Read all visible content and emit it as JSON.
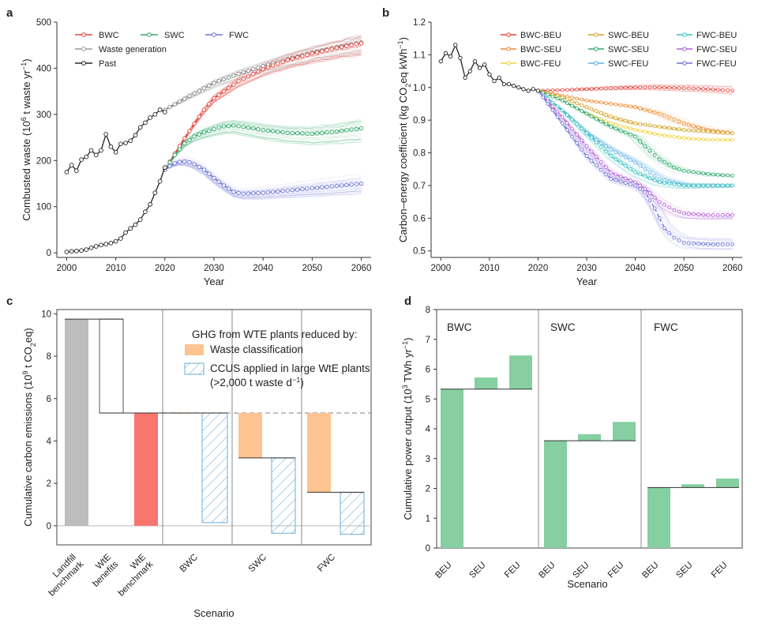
{
  "chart_data": [
    {
      "panel": "a",
      "type": "line",
      "xlabel": "Year",
      "ylabel": "Combusted waste (10^6 t waste yr^-1)",
      "xlim": [
        1998,
        2062
      ],
      "ylim": [
        -10,
        500
      ],
      "xticks": [
        2000,
        2010,
        2020,
        2030,
        2040,
        2050,
        2060
      ],
      "yticks": [
        0,
        100,
        200,
        300,
        400,
        500
      ],
      "legend": [
        "BWC",
        "SWC",
        "FWC",
        "Waste generation",
        "Past"
      ],
      "colors": {
        "BWC": "#e8423b",
        "SWC": "#2fa86b",
        "FWC": "#6f74d6",
        "Waste generation": "#9a9a9a",
        "Past": "#222222"
      },
      "series": [
        {
          "name": "Past",
          "x": [
            2000,
            2001,
            2002,
            2003,
            2004,
            2005,
            2006,
            2007,
            2008,
            2009,
            2010,
            2011,
            2012,
            2013,
            2014,
            2015,
            2016,
            2017,
            2018,
            2019,
            2020
          ],
          "values": [
            2,
            3,
            4,
            5,
            7,
            11,
            14,
            17,
            19,
            21,
            25,
            31,
            44,
            53,
            61,
            72,
            89,
            105,
            130,
            155,
            185
          ]
        },
        {
          "name": "Waste generation past",
          "x": [
            2000,
            2001,
            2002,
            2003,
            2004,
            2005,
            2006,
            2007,
            2008,
            2009,
            2010,
            2011,
            2012,
            2013,
            2014,
            2015,
            2016,
            2017,
            2018,
            2019,
            2020
          ],
          "values": [
            175,
            190,
            178,
            202,
            208,
            222,
            212,
            222,
            257,
            230,
            218,
            236,
            238,
            243,
            255,
            272,
            282,
            293,
            300,
            310,
            305
          ]
        },
        {
          "name": "Waste generation",
          "x": [
            2020,
            2025,
            2030,
            2035,
            2040,
            2045,
            2050,
            2055,
            2060
          ],
          "values": [
            310,
            340,
            368,
            388,
            405,
            420,
            434,
            446,
            456
          ]
        },
        {
          "name": "BWC",
          "x": [
            2020,
            2022,
            2024,
            2026,
            2028,
            2030,
            2035,
            2040,
            2045,
            2050,
            2055,
            2060
          ],
          "values": [
            180,
            215,
            248,
            280,
            310,
            335,
            372,
            398,
            418,
            432,
            444,
            454
          ]
        },
        {
          "name": "SWC",
          "x": [
            2020,
            2022,
            2024,
            2026,
            2028,
            2030,
            2032,
            2034,
            2036,
            2040,
            2045,
            2050,
            2055,
            2060
          ],
          "values": [
            180,
            212,
            237,
            252,
            261,
            268,
            274,
            276,
            273,
            266,
            260,
            258,
            263,
            270
          ]
        },
        {
          "name": "FWC",
          "x": [
            2020,
            2021,
            2022,
            2023,
            2024,
            2025,
            2026,
            2028,
            2030,
            2032,
            2034,
            2036,
            2040,
            2045,
            2050,
            2055,
            2060
          ],
          "values": [
            180,
            188,
            194,
            197,
            198,
            196,
            192,
            180,
            162,
            146,
            132,
            128,
            130,
            135,
            140,
            145,
            150
          ]
        }
      ]
    },
    {
      "panel": "b",
      "type": "line",
      "xlabel": "Year",
      "ylabel": "Carbon-energy coefficient (kg CO2eq kWh^-1)",
      "xlim": [
        1998,
        2062
      ],
      "ylim": [
        0.48,
        1.2
      ],
      "xticks": [
        2000,
        2010,
        2020,
        2030,
        2040,
        2050,
        2060
      ],
      "yticks": [
        0.5,
        0.6,
        0.7,
        0.8,
        0.9,
        1.0,
        1.1,
        1.2
      ],
      "legend": [
        "BWC-BEU",
        "SWC-BEU",
        "FWC-BEU",
        "BWC-SEU",
        "SWC-SEU",
        "FWC-SEU",
        "BWC-FEU",
        "SWC-FEU",
        "FWC-FEU"
      ],
      "colors": {
        "BWC-BEU": "#e8423b",
        "SWC-BEU": "#d4a62a",
        "FWC-BEU": "#35c2c2",
        "BWC-SEU": "#ef8a2c",
        "SWC-SEU": "#2fa86b",
        "FWC-SEU": "#b45fd6",
        "BWC-FEU": "#f2d23c",
        "SWC-FEU": "#5ab0e8",
        "FWC-FEU": "#6f74d6"
      },
      "series": [
        {
          "name": "Past",
          "x": [
            2000,
            2001,
            2002,
            2003,
            2004,
            2005,
            2006,
            2007,
            2008,
            2009,
            2010,
            2011,
            2012,
            2013,
            2014,
            2015,
            2016,
            2017,
            2018,
            2019,
            2020
          ],
          "values": [
            1.08,
            1.105,
            1.095,
            1.13,
            1.09,
            1.03,
            1.05,
            1.08,
            1.06,
            1.07,
            1.04,
            1.02,
            1.03,
            1.01,
            1.01,
            1.005,
            1.0,
            0.995,
            0.99,
            0.995,
            0.99
          ]
        },
        {
          "name": "BWC-BEU",
          "x": [
            2020,
            2025,
            2030,
            2035,
            2040,
            2045,
            2050,
            2055,
            2060
          ],
          "values": [
            0.99,
            0.992,
            0.995,
            0.998,
            1.0,
            1.0,
            0.998,
            0.995,
            0.99
          ]
        },
        {
          "name": "BWC-SEU",
          "x": [
            2020,
            2025,
            2030,
            2035,
            2040,
            2045,
            2050,
            2055,
            2060
          ],
          "values": [
            0.99,
            0.975,
            0.96,
            0.95,
            0.94,
            0.92,
            0.89,
            0.87,
            0.86
          ]
        },
        {
          "name": "BWC-FEU",
          "x": [
            2020,
            2025,
            2030,
            2035,
            2040,
            2045,
            2050,
            2055,
            2060
          ],
          "values": [
            0.99,
            0.96,
            0.92,
            0.89,
            0.87,
            0.855,
            0.845,
            0.84,
            0.84
          ]
        },
        {
          "name": "SWC-BEU",
          "x": [
            2020,
            2025,
            2030,
            2035,
            2040,
            2045,
            2050,
            2055,
            2060
          ],
          "values": [
            0.99,
            0.97,
            0.94,
            0.91,
            0.89,
            0.88,
            0.87,
            0.865,
            0.86
          ]
        },
        {
          "name": "SWC-SEU",
          "x": [
            2020,
            2025,
            2030,
            2035,
            2040,
            2042,
            2045,
            2048,
            2050,
            2055,
            2060
          ],
          "values": [
            0.99,
            0.96,
            0.92,
            0.88,
            0.85,
            0.82,
            0.78,
            0.755,
            0.745,
            0.735,
            0.73
          ]
        },
        {
          "name": "SWC-FEU",
          "x": [
            2020,
            2025,
            2030,
            2035,
            2040,
            2045,
            2050,
            2055,
            2060
          ],
          "values": [
            0.99,
            0.93,
            0.86,
            0.81,
            0.77,
            0.72,
            0.7,
            0.7,
            0.7
          ]
        },
        {
          "name": "FWC-BEU",
          "x": [
            2020,
            2025,
            2030,
            2035,
            2040,
            2045,
            2050,
            2055,
            2060
          ],
          "values": [
            0.99,
            0.93,
            0.86,
            0.79,
            0.74,
            0.71,
            0.7,
            0.7,
            0.7
          ]
        },
        {
          "name": "FWC-SEU",
          "x": [
            2020,
            2025,
            2030,
            2035,
            2040,
            2042,
            2045,
            2048,
            2050,
            2055,
            2060
          ],
          "values": [
            0.99,
            0.91,
            0.82,
            0.74,
            0.71,
            0.69,
            0.65,
            0.625,
            0.615,
            0.61,
            0.61
          ]
        },
        {
          "name": "FWC-FEU",
          "x": [
            2020,
            2025,
            2030,
            2035,
            2040,
            2042,
            2044,
            2046,
            2048,
            2050,
            2055,
            2060
          ],
          "values": [
            0.99,
            0.89,
            0.79,
            0.72,
            0.7,
            0.68,
            0.63,
            0.57,
            0.54,
            0.525,
            0.52,
            0.52
          ]
        }
      ]
    },
    {
      "panel": "c",
      "type": "bar",
      "title": "GHG from WTE plants reduced by:",
      "xlabel": "Scenario",
      "ylabel": "Cumulative carbon emissions (10^9 t CO2eq)",
      "ylim": [
        -0.9,
        10.2
      ],
      "yticks": [
        0,
        2,
        4,
        6,
        8,
        10
      ],
      "categories": [
        "Landfill benchmark",
        "WtE benefits",
        "WtE benchmark",
        "BWC",
        "SWC",
        "FWC"
      ],
      "legend": [
        "Waste classification",
        "CCUS applied in large WtE plants (>2,000 t waste d^-1)"
      ],
      "benchmark_line": 5.32,
      "bars": [
        {
          "category": "Landfill benchmark",
          "kind": "solid",
          "color": "#bdbdbd",
          "bottom": 0,
          "top": 9.75
        },
        {
          "category": "WtE benefits",
          "kind": "outline",
          "bottom": 5.32,
          "top": 9.75
        },
        {
          "category": "WtE benchmark",
          "kind": "solid",
          "color": "#f8766d",
          "bottom": 0,
          "top": 5.32
        },
        {
          "category": "BWC",
          "kind": "waste-classification",
          "bottom": 5.32,
          "top": 5.32
        },
        {
          "category": "BWC",
          "kind": "ccus",
          "bottom": 0.15,
          "top": 5.32
        },
        {
          "category": "SWC",
          "kind": "waste-classification",
          "bottom": 3.2,
          "top": 5.32
        },
        {
          "category": "SWC",
          "kind": "ccus",
          "bottom": -0.35,
          "top": 3.2
        },
        {
          "category": "FWC",
          "kind": "waste-classification",
          "bottom": 1.58,
          "top": 5.32
        },
        {
          "category": "FWC",
          "kind": "ccus",
          "bottom": -0.4,
          "top": 1.58
        }
      ]
    },
    {
      "panel": "d",
      "type": "bar",
      "xlabel": "Scenario",
      "ylabel": "Cumulative power output (10^3 TWh yr^-1)",
      "ylim": [
        0,
        8
      ],
      "yticks": [
        0,
        1,
        2,
        3,
        4,
        5,
        6,
        7,
        8
      ],
      "groups": [
        "BWC",
        "SWC",
        "FWC"
      ],
      "categories": [
        "BEU",
        "SEU",
        "FEU"
      ],
      "color": "#86cfa0",
      "bars": [
        {
          "group": "BWC",
          "category": "BEU",
          "bottom": 0,
          "top": 5.33
        },
        {
          "group": "BWC",
          "category": "SEU",
          "bottom": 5.33,
          "top": 5.72
        },
        {
          "group": "BWC",
          "category": "FEU",
          "bottom": 5.33,
          "top": 6.46
        },
        {
          "group": "SWC",
          "category": "BEU",
          "bottom": 0,
          "top": 3.6
        },
        {
          "group": "SWC",
          "category": "SEU",
          "bottom": 3.6,
          "top": 3.82
        },
        {
          "group": "SWC",
          "category": "FEU",
          "bottom": 3.6,
          "top": 4.23
        },
        {
          "group": "FWC",
          "category": "BEU",
          "bottom": 0,
          "top": 2.03
        },
        {
          "group": "FWC",
          "category": "SEU",
          "bottom": 2.03,
          "top": 2.14
        },
        {
          "group": "FWC",
          "category": "FEU",
          "bottom": 2.03,
          "top": 2.33
        }
      ]
    }
  ]
}
